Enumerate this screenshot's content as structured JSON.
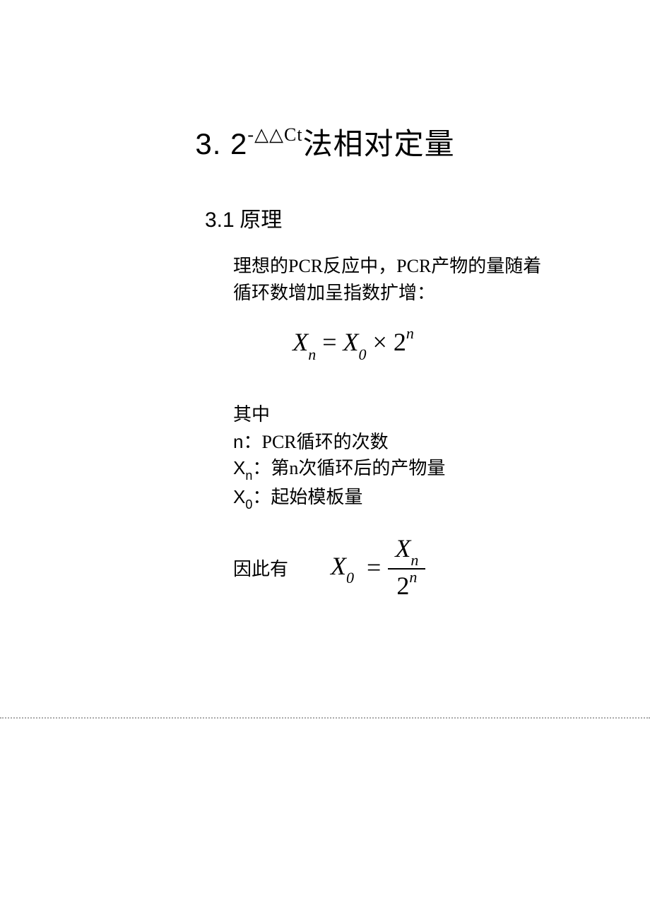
{
  "title": {
    "prefix": "3. 2",
    "superscript": "-△△Ct",
    "suffix": "法相对定量"
  },
  "section": {
    "number": "3.1",
    "heading": "原理"
  },
  "paragraph1_line1": "理想的PCR反应中，PCR产物的量随着",
  "paragraph1_line2": "循环数增加呈指数扩增：",
  "formula1": {
    "lhs_var": "X",
    "lhs_sub": "n",
    "eq": " = ",
    "r1_var": "X",
    "r1_sub": "0",
    "times": " × ",
    "r2_base": "2",
    "r2_sup": "n"
  },
  "where_label": "其中",
  "defs": {
    "n": {
      "var": "n",
      "colon": "：",
      "text": "PCR循环的次数"
    },
    "xn": {
      "var": "X",
      "sub": "n",
      "colon": "：",
      "text": "第n次循环后的产物量"
    },
    "x0": {
      "var": "X",
      "sub": "0",
      "colon": "：",
      "text": "起始模板量"
    }
  },
  "therefore_label": "因此有",
  "formula2": {
    "lhs_var": "X",
    "lhs_sub": "0",
    "eq": "=",
    "num_var": "X",
    "num_sub": "n",
    "den_base": "2",
    "den_sup": "n"
  },
  "colors": {
    "text": "#000000",
    "background": "#ffffff",
    "dotted": "#aaaaaa"
  },
  "fonts": {
    "body": "SimSun",
    "math": "Times New Roman",
    "title_size": 42,
    "heading_size": 30,
    "body_size": 26,
    "formula_size": 36
  }
}
